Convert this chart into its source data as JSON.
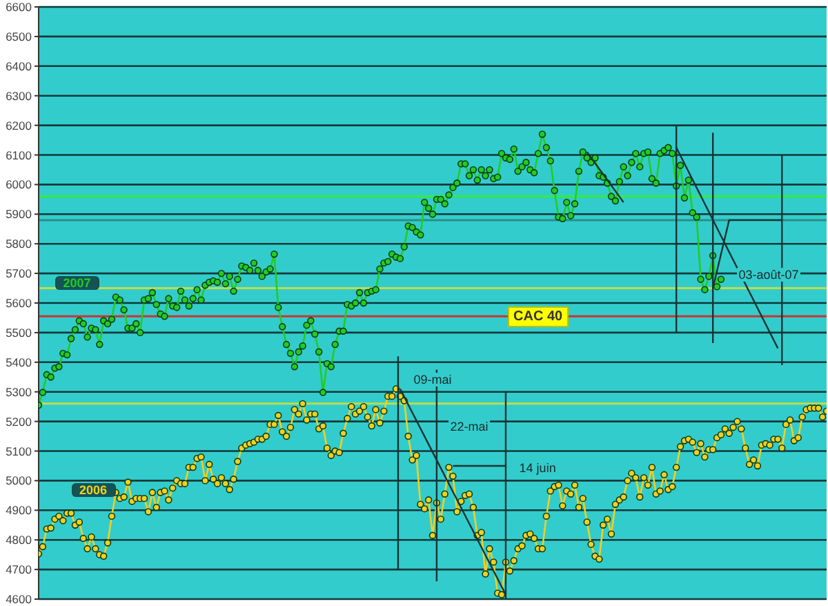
{
  "chart_data": {
    "type": "line",
    "title": "CAC 40",
    "annotations": [
      "09-mai",
      "22-mai",
      "14 juin",
      "03-août-07"
    ],
    "categories": [
      null,
      null,
      null,
      null,
      null,
      null,
      null,
      null,
      null,
      null,
      null,
      null,
      null,
      null,
      null,
      null,
      null,
      null,
      null,
      null,
      null,
      null,
      null,
      null,
      null,
      null,
      null,
      null,
      null,
      null,
      null,
      null,
      null,
      null,
      null,
      null,
      null,
      null,
      null,
      null,
      null,
      null,
      null,
      null,
      null,
      null,
      null,
      null,
      null,
      null,
      null,
      null,
      null,
      null,
      null,
      null,
      null,
      null,
      null,
      null,
      null,
      null,
      null,
      null,
      null,
      null,
      null,
      null,
      null,
      null,
      null,
      null,
      null,
      null,
      null,
      null,
      null,
      null,
      null,
      null,
      null,
      null,
      null,
      null,
      null,
      null,
      null,
      null,
      null,
      null,
      null,
      null,
      null,
      null,
      null,
      null,
      null,
      null,
      null,
      null,
      null,
      null,
      null,
      null,
      null,
      null,
      null,
      null,
      null,
      null,
      null,
      null,
      null,
      null,
      null,
      null,
      null,
      null,
      null,
      null,
      null,
      null,
      null,
      null,
      null,
      null,
      null,
      null,
      null,
      null,
      null,
      null,
      null,
      null,
      null,
      null,
      null,
      null,
      null,
      null,
      null,
      null,
      null,
      null,
      null,
      null,
      null,
      null,
      null,
      null,
      null,
      null,
      null,
      null,
      null,
      null,
      null,
      null,
      null,
      null,
      null,
      null,
      null,
      null,
      null,
      null,
      null,
      null,
      null,
      null,
      null,
      null,
      null,
      null,
      null,
      null,
      null,
      null,
      null,
      null,
      null,
      null,
      null,
      null,
      null,
      null,
      null,
      null,
      null,
      null,
      null,
      null,
      null,
      null,
      null
    ],
    "series": [
      {
        "name": "2007",
        "color": "#22cc22",
        "values": [
          5255,
          5298,
          5358,
          5350,
          5380,
          5385,
          5430,
          5425,
          5480,
          5510,
          5540,
          5530,
          5485,
          5515,
          5510,
          5460,
          5540,
          5530,
          5545,
          5620,
          5610,
          5577,
          5515,
          5515,
          5530,
          5500,
          5610,
          5615,
          5635,
          5595,
          5563,
          5555,
          5615,
          5590,
          5585,
          5640,
          5610,
          5590,
          5615,
          5645,
          5610,
          5660,
          5670,
          5675,
          5670,
          5700,
          5665,
          5690,
          5640,
          5680,
          5725,
          5720,
          5710,
          5735,
          5710,
          5690,
          5705,
          5715,
          5765,
          5585,
          5520,
          5460,
          5430,
          5385,
          5435,
          5455,
          5525,
          5540,
          5495,
          5435,
          5298,
          5395,
          5385,
          5460,
          5505,
          5505,
          5595,
          5590,
          5600,
          5635,
          5600,
          5635,
          5640,
          5645,
          5715,
          5735,
          5740,
          5765,
          5755,
          5750,
          5790,
          5860,
          5855,
          5840,
          5830,
          5940,
          5920,
          5900,
          5950,
          5950,
          5935,
          5965,
          5990,
          6005,
          6070,
          6070,
          6030,
          6050,
          6015,
          6050,
          6030,
          6050,
          6020,
          6025,
          6105,
          6090,
          6085,
          6120,
          6045,
          6060,
          6075,
          6050,
          6040,
          6105,
          6170,
          6125,
          6080,
          5980,
          5890,
          5885,
          5940,
          5895,
          5935,
          6045,
          6110,
          6090,
          6075,
          6090,
          6030,
          6025,
          6005,
          5960,
          5945,
          6010,
          6060,
          6030,
          6075,
          6105,
          6060,
          6105,
          6110,
          6020,
          6005,
          6105,
          6115,
          6125,
          6105,
          5995,
          6065,
          5955,
          6015,
          5905,
          5890,
          5680,
          5645,
          5690,
          5760,
          5655,
          5680,
          null,
          null,
          null,
          null,
          null,
          null,
          null,
          null,
          null,
          null,
          null,
          null,
          null,
          null,
          null,
          null,
          null,
          null,
          null,
          null,
          null,
          null,
          null,
          null,
          null,
          null
        ]
      },
      {
        "name": "2006",
        "color": "#f0d020",
        "values": [
          4753,
          4777,
          4837,
          4840,
          4870,
          4880,
          4865,
          4890,
          4890,
          4850,
          4860,
          4805,
          4770,
          4810,
          4770,
          4750,
          4745,
          4790,
          4880,
          4960,
          4940,
          4945,
          4995,
          4930,
          4940,
          4940,
          4940,
          4895,
          4960,
          4910,
          4960,
          4965,
          4935,
          4975,
          5000,
          4990,
          4990,
          5045,
          5045,
          5075,
          5080,
          5000,
          5055,
          5005,
          4990,
          5010,
          4990,
          4970,
          5005,
          5065,
          5110,
          5120,
          5125,
          5130,
          5140,
          5140,
          5150,
          5190,
          5190,
          5220,
          5165,
          5150,
          5180,
          5240,
          5225,
          5260,
          5205,
          5225,
          5225,
          5175,
          5185,
          5110,
          5085,
          5100,
          5095,
          5160,
          5210,
          5250,
          5225,
          5235,
          5250,
          5215,
          5185,
          5240,
          5195,
          5235,
          5285,
          5285,
          5310,
          5285,
          5270,
          5150,
          5070,
          5085,
          4920,
          4905,
          4935,
          4815,
          4925,
          4870,
          4955,
          5045,
          5015,
          4895,
          4930,
          4950,
          4955,
          4910,
          4815,
          4825,
          4685,
          4770,
          4725,
          4620,
          4615,
          4725,
          4695,
          4730,
          4770,
          4780,
          4815,
          4820,
          4805,
          4770,
          4770,
          4880,
          4965,
          4980,
          4985,
          4915,
          4965,
          4955,
          4985,
          4910,
          4940,
          4860,
          4785,
          4745,
          4735,
          4850,
          4870,
          4820,
          4920,
          4935,
          4945,
          5000,
          5025,
          5010,
          4945,
          5010,
          4985,
          5045,
          4955,
          4965,
          5020,
          4970,
          4980,
          5045,
          5115,
          5135,
          5140,
          5130,
          5095,
          5125,
          5080,
          5105,
          5105,
          5145,
          5155,
          5175,
          5160,
          5180,
          5200,
          5175,
          5110,
          5055,
          5070,
          5050,
          5120,
          5125,
          5120,
          5140,
          5140,
          5110,
          5190,
          5205,
          5135,
          5145,
          5215,
          5240,
          5245,
          5245,
          5245,
          5215,
          5235
        ]
      }
    ],
    "ylim": [
      4600,
      6600
    ],
    "yticks": [
      4600,
      4700,
      4800,
      4900,
      5000,
      5100,
      5200,
      5300,
      5400,
      5500,
      5600,
      5700,
      5800,
      5900,
      6000,
      6100,
      6200,
      6300,
      6400,
      6500,
      6600
    ],
    "grid": "y",
    "marker": "circle",
    "tick_labels": "y",
    "ref_lines": [
      {
        "axis": "y",
        "value": 5960,
        "color": "#33ee33"
      },
      {
        "axis": "y",
        "value": 5880,
        "color": "#2a8f86"
      },
      {
        "axis": "y",
        "value": 5650,
        "color": "#c0dc48"
      },
      {
        "axis": "y",
        "value": 5555,
        "color": "#cc3333"
      },
      {
        "axis": "y",
        "value": 5260,
        "color": "#c0dc48"
      }
    ]
  }
}
